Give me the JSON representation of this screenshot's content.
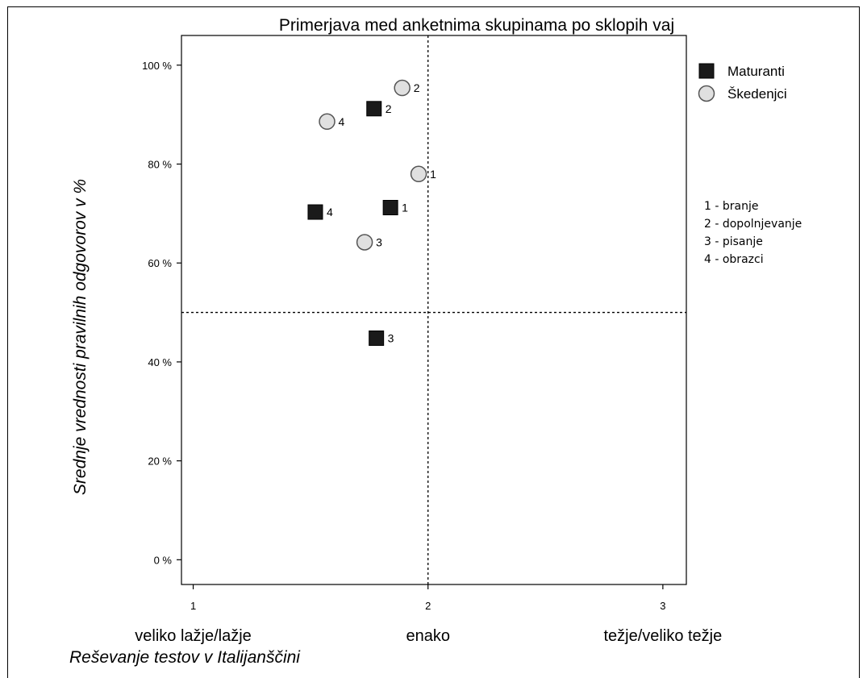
{
  "chart_data": {
    "type": "scatter",
    "title": "Primerjava med anketnima skupinama po sklopih vaj",
    "xlabel": "Reševanje testov v Italijanščini",
    "ylabel": "Srednje vrednosti pravilnih odgovorov v %",
    "xlim": [
      0.95,
      3.1
    ],
    "ylim": [
      -5,
      106
    ],
    "x_ticks": [
      1,
      2,
      3
    ],
    "x_tick_labels": [
      "1",
      "2",
      "3"
    ],
    "x_category_labels": [
      "veliko lažje/lažje",
      "enako",
      "težje/veliko težje"
    ],
    "y_ticks": [
      0,
      20,
      40,
      60,
      80,
      100
    ],
    "y_tick_labels": [
      "0 %",
      "20 %",
      "40 %",
      "60 %",
      "80 %",
      "100 %"
    ],
    "reference_lines": {
      "x": 2,
      "y": 50
    },
    "grid": false,
    "legend_position": "right",
    "series": [
      {
        "name": "Maturanti",
        "marker": "square",
        "color": "#1a1a1a",
        "points": [
          {
            "x": 1.84,
            "y": 71.2,
            "label": "1"
          },
          {
            "x": 1.77,
            "y": 91.2,
            "label": "2"
          },
          {
            "x": 1.78,
            "y": 44.8,
            "label": "3"
          },
          {
            "x": 1.52,
            "y": 70.3,
            "label": "4"
          }
        ]
      },
      {
        "name": "Škedenjci",
        "marker": "circle",
        "color": "#e0e0e0",
        "points": [
          {
            "x": 1.96,
            "y": 78.0,
            "label": "1"
          },
          {
            "x": 1.89,
            "y": 95.4,
            "label": "2"
          },
          {
            "x": 1.73,
            "y": 64.2,
            "label": "3"
          },
          {
            "x": 1.57,
            "y": 88.6,
            "label": "4"
          }
        ]
      }
    ],
    "key": [
      "1 - branje",
      "2 - dopolnjevanje",
      "3 - pisanje",
      "4 - obrazci"
    ]
  }
}
